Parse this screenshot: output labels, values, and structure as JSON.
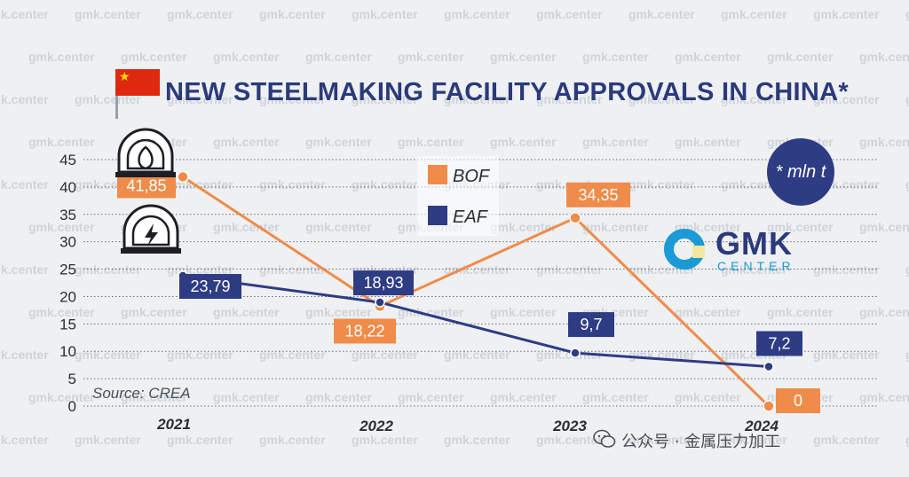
{
  "watermark": {
    "text": "gmk.center"
  },
  "header": {
    "title": "NEW STEELMAKING FACILITY APPROVALS IN CHINA*"
  },
  "unit_badge": {
    "text": "* mln t"
  },
  "logo": {
    "name": "GMK",
    "subtitle": "CENTER"
  },
  "source": {
    "text": "Source: CREA"
  },
  "footer": {
    "text": "公众号 · 金属压力加工"
  },
  "colors": {
    "bof": "#ef8c4a",
    "eaf": "#2e3c84",
    "grid": "#6b6f78",
    "axis_text": "#2a2d33"
  },
  "icons": {
    "bof": "blast-furnace-icon",
    "eaf": "electric-furnace-icon",
    "footer": "wechat-icon",
    "flag": "china-flag-icon"
  },
  "chart_data": {
    "type": "line",
    "title": "NEW STEELMAKING FACILITY APPROVALS IN CHINA*",
    "categories": [
      "2021",
      "2022",
      "2023",
      "2024"
    ],
    "series": [
      {
        "name": "BOF",
        "values": [
          41.85,
          18.22,
          34.35,
          0
        ],
        "labels": [
          "41,85",
          "18,22",
          "34,35",
          "0"
        ]
      },
      {
        "name": "EAF",
        "values": [
          23.79,
          18.93,
          9.7,
          7.2
        ],
        "labels": [
          "23,79",
          "18,93",
          "9,7",
          "7,2"
        ]
      }
    ],
    "yticks": [
      "0",
      "5",
      "10",
      "15",
      "20",
      "25",
      "30",
      "35",
      "40",
      "45"
    ],
    "ylim": [
      0,
      45
    ],
    "ylabel": "* mln t",
    "xlabel": "",
    "grid": true,
    "legend": "top-center"
  }
}
